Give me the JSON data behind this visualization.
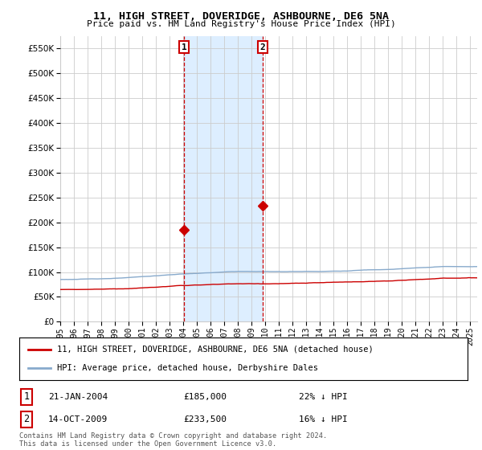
{
  "title": "11, HIGH STREET, DOVERIDGE, ASHBOURNE, DE6 5NA",
  "subtitle": "Price paid vs. HM Land Registry's House Price Index (HPI)",
  "ylabel_ticks": [
    0,
    50000,
    100000,
    150000,
    200000,
    250000,
    300000,
    350000,
    400000,
    450000,
    500000,
    550000
  ],
  "ylim": [
    0,
    575000
  ],
  "xlim_start": 1995.0,
  "xlim_end": 2025.5,
  "legend_line1": "11, HIGH STREET, DOVERIDGE, ASHBOURNE, DE6 5NA (detached house)",
  "legend_line2": "HPI: Average price, detached house, Derbyshire Dales",
  "sale1_label": "1",
  "sale1_date": "21-JAN-2004",
  "sale1_price": "£185,000",
  "sale1_pct": "22% ↓ HPI",
  "sale1_x": 2004.05,
  "sale1_y": 185000,
  "sale2_label": "2",
  "sale2_date": "14-OCT-2009",
  "sale2_price": "£233,500",
  "sale2_pct": "16% ↓ HPI",
  "sale2_x": 2009.79,
  "sale2_y": 233500,
  "red_color": "#cc0000",
  "blue_color": "#88aacc",
  "shade_color": "#ddeeff",
  "dashed_color": "#cc0000",
  "background_color": "#ffffff",
  "grid_color": "#cccccc",
  "footer": "Contains HM Land Registry data © Crown copyright and database right 2024.\nThis data is licensed under the Open Government Licence v3.0."
}
